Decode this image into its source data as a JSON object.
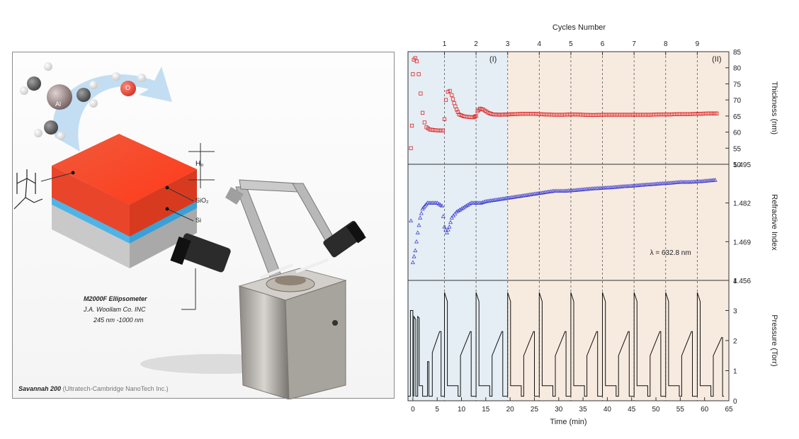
{
  "illustration": {
    "molecule_label_metal": "Al",
    "molecule_label_oxygen": "O",
    "film_thickness_label": "H₀",
    "layer_sio2": "SiO₂",
    "layer_si": "Si",
    "instrument_line1": "M2000F Ellipsometer",
    "instrument_line2": "J.A. Woollam Co. INC",
    "instrument_line3": "245 nm -1000 nm",
    "caption_bold": "Savannah 200",
    "caption_rest": "(Ultratech-Cambridge NanoTech Inc.)",
    "colors": {
      "polymer": "#e8452b",
      "sio2": "#4fb3e6",
      "si": "#bdbdbd",
      "arrow": "#a8d0ee"
    }
  },
  "chart_data": {
    "type": "line",
    "top_axis_label": "Cycles Number",
    "cycle_ticks": [
      "1",
      "2",
      "3",
      "4",
      "5",
      "6",
      "7",
      "8",
      "9"
    ],
    "cycle_times": [
      6.5,
      13.0,
      19.5,
      26.0,
      32.5,
      39.0,
      45.5,
      52.0,
      58.5
    ],
    "xlabel": "Time (min)",
    "xlim": [
      -1,
      65
    ],
    "xticks": [
      "0",
      "5",
      "10",
      "15",
      "20",
      "25",
      "30",
      "35",
      "40",
      "45",
      "50",
      "55",
      "60",
      "65"
    ],
    "regions": [
      {
        "label": "(I)",
        "from": -1,
        "to": 19.5,
        "color": "#e4eef4"
      },
      {
        "label": "(II)",
        "from": 19.5,
        "to": 65,
        "color": "#f7ebe0"
      }
    ],
    "panels": [
      {
        "ylabel": "Thickness (nm)",
        "ylim": [
          50,
          85
        ],
        "yticks": [
          "50",
          "55",
          "60",
          "65",
          "70",
          "75",
          "80",
          "85"
        ],
        "series": [
          {
            "color": "#dd2222",
            "marker": "square",
            "points": [
              [
                -0.4,
                55
              ],
              [
                -0.2,
                62
              ],
              [
                0,
                78
              ],
              [
                0.2,
                82.5
              ],
              [
                0.5,
                83
              ],
              [
                0.8,
                82
              ],
              [
                1.2,
                78
              ],
              [
                1.6,
                72
              ],
              [
                2,
                66
              ],
              [
                2.4,
                63
              ],
              [
                2.8,
                61.5
              ],
              [
                3.5,
                60.8
              ],
              [
                4.5,
                60.6
              ],
              [
                5.5,
                60.5
              ],
              [
                6.2,
                60.5
              ],
              [
                6.5,
                64
              ],
              [
                6.8,
                70
              ],
              [
                7.2,
                72.5
              ],
              [
                7.6,
                72.8
              ],
              [
                8,
                71.5
              ],
              [
                8.5,
                69
              ],
              [
                9,
                67
              ],
              [
                9.5,
                65.5
              ],
              [
                10.5,
                64.9
              ],
              [
                11.5,
                64.7
              ],
              [
                12.5,
                64.6
              ],
              [
                13,
                65
              ],
              [
                13.3,
                66.5
              ],
              [
                13.8,
                67.3
              ],
              [
                14.5,
                67
              ],
              [
                15.5,
                66
              ],
              [
                16.5,
                65.5
              ],
              [
                18,
                65.4
              ],
              [
                19.5,
                65.5
              ],
              [
                21,
                65.6
              ],
              [
                23,
                65.7
              ],
              [
                25,
                65.7
              ],
              [
                27,
                65.5
              ],
              [
                29,
                65.4
              ],
              [
                31,
                65.4
              ],
              [
                33,
                65.5
              ],
              [
                35,
                65.4
              ],
              [
                37,
                65.3
              ],
              [
                39,
                65.4
              ],
              [
                41,
                65.4
              ],
              [
                43,
                65.4
              ],
              [
                45,
                65.4
              ],
              [
                47,
                65.4
              ],
              [
                49,
                65.4
              ],
              [
                51,
                65.5
              ],
              [
                53,
                65.5
              ],
              [
                55,
                65.6
              ],
              [
                57,
                65.6
              ],
              [
                59,
                65.7
              ],
              [
                61,
                65.8
              ],
              [
                62.5,
                65.8
              ]
            ]
          }
        ]
      },
      {
        "ylabel": "Refractive Index",
        "ylim": [
          1.456,
          1.495
        ],
        "yticks": [
          "1.456",
          "1.469",
          "1.482",
          "1.495"
        ],
        "annotation": "λ = 632.8 nm",
        "series": [
          {
            "color": "#3333cc",
            "marker": "triangle",
            "points": [
              [
                -0.4,
                1.476
              ],
              [
                0,
                1.462
              ],
              [
                0.5,
                1.466
              ],
              [
                1,
                1.472
              ],
              [
                1.5,
                1.477
              ],
              [
                2,
                1.48
              ],
              [
                2.5,
                1.481
              ],
              [
                3,
                1.482
              ],
              [
                4,
                1.482
              ],
              [
                5,
                1.482
              ],
              [
                6,
                1.481
              ],
              [
                6.5,
                1.474
              ],
              [
                7,
                1.472
              ],
              [
                7.5,
                1.474
              ],
              [
                8,
                1.477
              ],
              [
                9,
                1.479
              ],
              [
                10,
                1.48
              ],
              [
                11,
                1.481
              ],
              [
                12,
                1.482
              ],
              [
                13,
                1.482
              ],
              [
                14,
                1.482
              ],
              [
                15,
                1.4825
              ],
              [
                17,
                1.483
              ],
              [
                19,
                1.4835
              ],
              [
                21,
                1.484
              ],
              [
                23,
                1.4845
              ],
              [
                25,
                1.485
              ],
              [
                27,
                1.4855
              ],
              [
                29,
                1.486
              ],
              [
                31,
                1.486
              ],
              [
                33,
                1.4862
              ],
              [
                35,
                1.4865
              ],
              [
                37,
                1.4868
              ],
              [
                39,
                1.487
              ],
              [
                41,
                1.4872
              ],
              [
                43,
                1.4875
              ],
              [
                45,
                1.4877
              ],
              [
                47,
                1.488
              ],
              [
                49,
                1.4882
              ],
              [
                51,
                1.4885
              ],
              [
                53,
                1.4887
              ],
              [
                55,
                1.489
              ],
              [
                57,
                1.489
              ],
              [
                59,
                1.4892
              ],
              [
                61,
                1.4895
              ],
              [
                62.5,
                1.4897
              ]
            ]
          }
        ]
      },
      {
        "ylabel": "Pressure (Torr)",
        "ylim": [
          0,
          4
        ],
        "yticks": [
          "0",
          "1",
          "2",
          "3",
          "4"
        ],
        "series": [
          {
            "color": "#111111",
            "marker": "none",
            "points": [
              [
                -1,
                0.15
              ],
              [
                -0.5,
                0.15
              ],
              [
                -0.5,
                3.0
              ],
              [
                0,
                3.0
              ],
              [
                0,
                0.15
              ],
              [
                0.2,
                0.15
              ],
              [
                0.2,
                2.8
              ],
              [
                0.6,
                2.7
              ],
              [
                0.6,
                0.15
              ],
              [
                1,
                0.15
              ],
              [
                1,
                2.8
              ],
              [
                1.3,
                2.75
              ],
              [
                1.3,
                0.5
              ],
              [
                2,
                0.5
              ],
              [
                2,
                0.15
              ],
              [
                3,
                0.15
              ],
              [
                3,
                1.3
              ],
              [
                3.3,
                1.3
              ],
              [
                3.3,
                0.15
              ],
              [
                4,
                0.15
              ],
              [
                4,
                1.6
              ],
              [
                5.5,
                2.3
              ],
              [
                5.8,
                2.3
              ],
              [
                5.8,
                0.15
              ],
              [
                6.5,
                0.15
              ],
              [
                6.5,
                3.6
              ],
              [
                7.1,
                3.3
              ],
              [
                7.1,
                0.5
              ],
              [
                9.3,
                0.5
              ],
              [
                9.3,
                0.15
              ],
              [
                9.8,
                0.15
              ],
              [
                9.8,
                1.5
              ],
              [
                11.8,
                2.3
              ],
              [
                12,
                2.3
              ],
              [
                12,
                0.15
              ],
              [
                13,
                0.15
              ],
              [
                13,
                3.6
              ],
              [
                13.6,
                3.3
              ],
              [
                13.6,
                0.5
              ],
              [
                15.8,
                0.5
              ],
              [
                15.8,
                0.15
              ],
              [
                16.3,
                0.15
              ],
              [
                16.3,
                1.5
              ],
              [
                18.3,
                2.3
              ],
              [
                18.5,
                2.3
              ],
              [
                18.5,
                0.15
              ],
              [
                19.5,
                0.15
              ],
              [
                19.5,
                3.6
              ],
              [
                20.1,
                3.3
              ],
              [
                20.1,
                0.5
              ],
              [
                22.3,
                0.5
              ],
              [
                22.3,
                0.15
              ],
              [
                22.8,
                0.15
              ],
              [
                22.8,
                1.5
              ],
              [
                24.8,
                2.3
              ],
              [
                25,
                2.3
              ],
              [
                25,
                0.15
              ],
              [
                26,
                0.15
              ],
              [
                26,
                3.6
              ],
              [
                26.6,
                3.3
              ],
              [
                26.6,
                0.5
              ],
              [
                28.8,
                0.5
              ],
              [
                28.8,
                0.15
              ],
              [
                29.3,
                0.15
              ],
              [
                29.3,
                1.5
              ],
              [
                31.3,
                2.3
              ],
              [
                31.5,
                2.3
              ],
              [
                31.5,
                0.15
              ],
              [
                32.5,
                0.15
              ],
              [
                32.5,
                3.6
              ],
              [
                33.1,
                3.3
              ],
              [
                33.1,
                0.5
              ],
              [
                35.3,
                0.5
              ],
              [
                35.3,
                0.15
              ],
              [
                35.8,
                0.15
              ],
              [
                35.8,
                1.5
              ],
              [
                37.8,
                2.3
              ],
              [
                38,
                2.3
              ],
              [
                38,
                0.15
              ],
              [
                39,
                0.15
              ],
              [
                39,
                3.6
              ],
              [
                39.6,
                3.3
              ],
              [
                39.6,
                0.5
              ],
              [
                41.8,
                0.5
              ],
              [
                41.8,
                0.15
              ],
              [
                42.3,
                0.15
              ],
              [
                42.3,
                1.5
              ],
              [
                44.3,
                2.3
              ],
              [
                44.5,
                2.3
              ],
              [
                44.5,
                0.15
              ],
              [
                45.5,
                0.15
              ],
              [
                45.5,
                3.6
              ],
              [
                46.1,
                3.3
              ],
              [
                46.1,
                0.5
              ],
              [
                48.3,
                0.5
              ],
              [
                48.3,
                0.15
              ],
              [
                48.8,
                0.15
              ],
              [
                48.8,
                1.5
              ],
              [
                50.8,
                2.3
              ],
              [
                51,
                2.3
              ],
              [
                51,
                0.15
              ],
              [
                52,
                0.15
              ],
              [
                52,
                3.6
              ],
              [
                52.6,
                3.3
              ],
              [
                52.6,
                0.5
              ],
              [
                54.8,
                0.5
              ],
              [
                54.8,
                0.15
              ],
              [
                55.3,
                0.15
              ],
              [
                55.3,
                1.5
              ],
              [
                57.3,
                2.3
              ],
              [
                57.5,
                2.3
              ],
              [
                57.5,
                0.15
              ],
              [
                58.5,
                0.15
              ],
              [
                58.5,
                3.6
              ],
              [
                59.1,
                3.3
              ],
              [
                59.1,
                0.5
              ],
              [
                61.3,
                0.5
              ],
              [
                61.3,
                0.15
              ],
              [
                61.8,
                0.15
              ],
              [
                61.8,
                1.5
              ],
              [
                63.5,
                2.1
              ],
              [
                63.7,
                2.1
              ],
              [
                63.7,
                0.15
              ],
              [
                64,
                0.15
              ]
            ]
          }
        ]
      }
    ]
  }
}
